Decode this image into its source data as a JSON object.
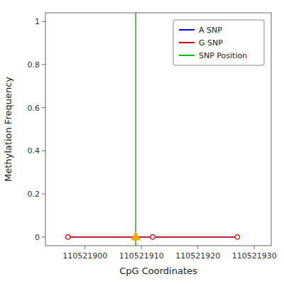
{
  "chart_data": {
    "type": "line",
    "xlabel": "CpG Coordinates",
    "ylabel": "Methylation Frequency",
    "xlim": [
      110521893,
      110521933
    ],
    "ylim": [
      -0.04,
      1.04
    ],
    "xticks": [
      110521900,
      110521910,
      110521920,
      110521930
    ],
    "yticks": [
      0.0,
      0.2,
      0.4,
      0.6,
      0.8,
      1.0
    ],
    "grid": false,
    "legend": "upper right",
    "series": [
      {
        "name": "A SNP",
        "type": "line",
        "color": "#0000FF",
        "marker": "none",
        "x": [
          110521897,
          110521907,
          110521912,
          110521917,
          110521927
        ],
        "values": [
          0.0,
          0.0,
          0.0,
          0.0,
          0.0
        ]
      },
      {
        "name": "G SNP",
        "type": "line",
        "color": "#CC0000",
        "marker": "circle",
        "x": [
          110521897,
          110521912,
          110521927
        ],
        "values": [
          0.0,
          0.0,
          0.0
        ]
      },
      {
        "name": "SNP Position",
        "type": "vline",
        "color": "#00BB00",
        "x": [
          110521909
        ]
      },
      {
        "type": "scatter",
        "color": "#FFA500",
        "marker": "triangle",
        "x": [
          110521909
        ],
        "values": [
          0.0
        ]
      }
    ]
  }
}
